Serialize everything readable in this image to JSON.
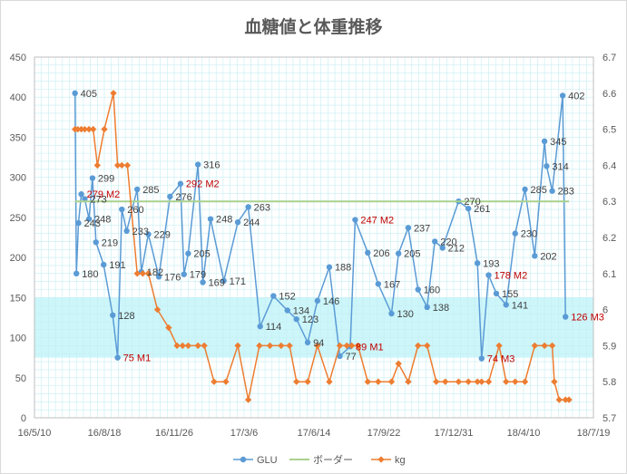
{
  "chart_data": {
    "type": "line",
    "title": "血糖値と体重推移",
    "x_axis": {
      "ticks": [
        "16/5/10",
        "16/8/18",
        "16/11/26",
        "17/3/6",
        "17/6/14",
        "17/9/22",
        "17/12/31",
        "18/4/10",
        "18/7/19"
      ],
      "range": [
        "2016-05-10",
        "2018-07-19"
      ]
    },
    "y_axis_left": {
      "min": 0,
      "max": 450,
      "step": 50,
      "ticks": [
        "0",
        "50",
        "100",
        "150",
        "200",
        "250",
        "300",
        "350",
        "400",
        "450"
      ]
    },
    "y_axis_right": {
      "min": 5.7,
      "max": 6.7,
      "step": 0.1,
      "ticks": [
        "5.7",
        "5.8",
        "5.9",
        "6",
        "6.1",
        "6.2",
        "6.3",
        "6.4",
        "6.5",
        "6.6",
        "6.7"
      ]
    },
    "target_band": {
      "from": 75,
      "to": 150,
      "color": "#ccf6fa"
    },
    "grid": true,
    "legend_position": "bottom",
    "series": [
      {
        "name": "GLU",
        "axis": "left",
        "color": "#5b9bd5",
        "points": [
          {
            "x": "2016-07-07",
            "y": 405,
            "label": "405"
          },
          {
            "x": "2016-07-09",
            "y": 180,
            "label": "180"
          },
          {
            "x": "2016-07-12",
            "y": 243,
            "label": "243"
          },
          {
            "x": "2016-07-16",
            "y": 279,
            "label": "279",
            "note": "M2"
          },
          {
            "x": "2016-07-21",
            "y": 273,
            "label": "273"
          },
          {
            "x": "2016-07-27",
            "y": 248,
            "label": "248"
          },
          {
            "x": "2016-08-01",
            "y": 299,
            "label": "299"
          },
          {
            "x": "2016-08-06",
            "y": 219,
            "label": "219"
          },
          {
            "x": "2016-08-17",
            "y": 191,
            "label": "191"
          },
          {
            "x": "2016-08-30",
            "y": 128,
            "label": "128"
          },
          {
            "x": "2016-09-06",
            "y": 75,
            "label": "75",
            "note": "M1"
          },
          {
            "x": "2016-09-12",
            "y": 260,
            "label": "260"
          },
          {
            "x": "2016-09-19",
            "y": 233,
            "label": "233"
          },
          {
            "x": "2016-10-04",
            "y": 285,
            "label": "285"
          },
          {
            "x": "2016-10-10",
            "y": 182,
            "label": "182"
          },
          {
            "x": "2016-10-20",
            "y": 229,
            "label": "229"
          },
          {
            "x": "2016-11-04",
            "y": 176,
            "label": "176"
          },
          {
            "x": "2016-11-20",
            "y": 276,
            "label": "276"
          },
          {
            "x": "2016-12-05",
            "y": 292,
            "label": "292",
            "note": "M2"
          },
          {
            "x": "2016-12-10",
            "y": 179,
            "label": "179"
          },
          {
            "x": "2016-12-16",
            "y": 205,
            "label": "205"
          },
          {
            "x": "2016-12-30",
            "y": 316,
            "label": "316"
          },
          {
            "x": "2017-01-06",
            "y": 169,
            "label": "169"
          },
          {
            "x": "2017-01-17",
            "y": 248,
            "label": "248"
          },
          {
            "x": "2017-02-05",
            "y": 171,
            "label": "171"
          },
          {
            "x": "2017-02-25",
            "y": 244,
            "label": "244"
          },
          {
            "x": "2017-03-12",
            "y": 263,
            "label": "263"
          },
          {
            "x": "2017-03-29",
            "y": 114,
            "label": "114"
          },
          {
            "x": "2017-04-17",
            "y": 152,
            "label": "152"
          },
          {
            "x": "2017-05-07",
            "y": 134,
            "label": "134"
          },
          {
            "x": "2017-05-20",
            "y": 123,
            "label": "123"
          },
          {
            "x": "2017-06-05",
            "y": 94,
            "label": "94"
          },
          {
            "x": "2017-06-19",
            "y": 146,
            "label": "146"
          },
          {
            "x": "2017-07-06",
            "y": 188,
            "label": "188"
          },
          {
            "x": "2017-07-21",
            "y": 77,
            "label": "77"
          },
          {
            "x": "2017-08-05",
            "y": 89,
            "label": "89",
            "note": "M1"
          },
          {
            "x": "2017-08-12",
            "y": 247,
            "label": "247",
            "note": "M2"
          },
          {
            "x": "2017-08-30",
            "y": 206,
            "label": "206"
          },
          {
            "x": "2017-09-14",
            "y": 167,
            "label": "167"
          },
          {
            "x": "2017-10-03",
            "y": 130,
            "label": "130"
          },
          {
            "x": "2017-10-13",
            "y": 205,
            "label": "205"
          },
          {
            "x": "2017-10-27",
            "y": 237,
            "label": "237"
          },
          {
            "x": "2017-11-10",
            "y": 160,
            "label": "160"
          },
          {
            "x": "2017-11-23",
            "y": 138,
            "label": "138"
          },
          {
            "x": "2017-12-04",
            "y": 220,
            "label": "220"
          },
          {
            "x": "2017-12-15",
            "y": 212,
            "label": "212"
          },
          {
            "x": "2018-01-07",
            "y": 270,
            "label": "270"
          },
          {
            "x": "2018-01-21",
            "y": 261,
            "label": "261"
          },
          {
            "x": "2018-02-03",
            "y": 193,
            "label": "193"
          },
          {
            "x": "2018-02-09",
            "y": 74,
            "label": "74",
            "note": "M3"
          },
          {
            "x": "2018-02-19",
            "y": 178,
            "label": "178",
            "note": "M2"
          },
          {
            "x": "2018-03-02",
            "y": 155,
            "label": "155"
          },
          {
            "x": "2018-03-16",
            "y": 141,
            "label": "141"
          },
          {
            "x": "2018-03-29",
            "y": 230,
            "label": "230"
          },
          {
            "x": "2018-04-12",
            "y": 285,
            "label": "285"
          },
          {
            "x": "2018-04-26",
            "y": 202,
            "label": "202"
          },
          {
            "x": "2018-05-10",
            "y": 345,
            "label": "345"
          },
          {
            "x": "2018-05-13",
            "y": 314,
            "label": "314"
          },
          {
            "x": "2018-05-21",
            "y": 283,
            "label": "283"
          },
          {
            "x": "2018-06-05",
            "y": 402,
            "label": "402"
          },
          {
            "x": "2018-06-09",
            "y": 126,
            "label": "126",
            "note": "M3"
          }
        ]
      },
      {
        "name": "ボーダー",
        "axis": "left",
        "color": "#a9d18e",
        "points": [
          {
            "x": "2016-07-07",
            "y": 270
          },
          {
            "x": "2018-06-14",
            "y": 270
          }
        ]
      },
      {
        "name": "kg",
        "axis": "right",
        "color": "#ed7d31",
        "points": [
          {
            "x": "2016-07-07",
            "y": 6.5
          },
          {
            "x": "2016-07-11",
            "y": 6.5
          },
          {
            "x": "2016-07-16",
            "y": 6.5
          },
          {
            "x": "2016-07-21",
            "y": 6.5
          },
          {
            "x": "2016-07-27",
            "y": 6.5
          },
          {
            "x": "2016-08-02",
            "y": 6.5
          },
          {
            "x": "2016-08-08",
            "y": 6.4
          },
          {
            "x": "2016-08-18",
            "y": 6.5
          },
          {
            "x": "2016-08-31",
            "y": 6.6
          },
          {
            "x": "2016-09-06",
            "y": 6.4
          },
          {
            "x": "2016-09-12",
            "y": 6.4
          },
          {
            "x": "2016-09-20",
            "y": 6.4
          },
          {
            "x": "2016-10-04",
            "y": 6.1
          },
          {
            "x": "2016-10-12",
            "y": 6.1
          },
          {
            "x": "2016-10-20",
            "y": 6.1
          },
          {
            "x": "2016-11-02",
            "y": 6.0
          },
          {
            "x": "2016-11-18",
            "y": 5.95
          },
          {
            "x": "2016-11-30",
            "y": 5.9
          },
          {
            "x": "2016-12-08",
            "y": 5.9
          },
          {
            "x": "2016-12-16",
            "y": 5.9
          },
          {
            "x": "2016-12-30",
            "y": 5.9
          },
          {
            "x": "2017-01-08",
            "y": 5.9
          },
          {
            "x": "2017-01-22",
            "y": 5.8
          },
          {
            "x": "2017-02-08",
            "y": 5.8
          },
          {
            "x": "2017-02-25",
            "y": 5.9
          },
          {
            "x": "2017-03-12",
            "y": 5.75
          },
          {
            "x": "2017-03-28",
            "y": 5.9
          },
          {
            "x": "2017-04-12",
            "y": 5.9
          },
          {
            "x": "2017-04-28",
            "y": 5.9
          },
          {
            "x": "2017-05-10",
            "y": 5.9
          },
          {
            "x": "2017-05-20",
            "y": 5.8
          },
          {
            "x": "2017-06-05",
            "y": 5.8
          },
          {
            "x": "2017-06-19",
            "y": 5.9
          },
          {
            "x": "2017-07-06",
            "y": 5.8
          },
          {
            "x": "2017-07-21",
            "y": 5.9
          },
          {
            "x": "2017-07-31",
            "y": 5.9
          },
          {
            "x": "2017-08-07",
            "y": 5.9
          },
          {
            "x": "2017-08-16",
            "y": 5.9
          },
          {
            "x": "2017-08-30",
            "y": 5.8
          },
          {
            "x": "2017-09-14",
            "y": 5.8
          },
          {
            "x": "2017-10-03",
            "y": 5.8
          },
          {
            "x": "2017-10-13",
            "y": 5.85
          },
          {
            "x": "2017-10-27",
            "y": 5.8
          },
          {
            "x": "2017-11-10",
            "y": 5.9
          },
          {
            "x": "2017-11-23",
            "y": 5.9
          },
          {
            "x": "2017-12-06",
            "y": 5.8
          },
          {
            "x": "2017-12-19",
            "y": 5.8
          },
          {
            "x": "2018-01-07",
            "y": 5.8
          },
          {
            "x": "2018-01-21",
            "y": 5.8
          },
          {
            "x": "2018-02-03",
            "y": 5.8
          },
          {
            "x": "2018-02-09",
            "y": 5.8
          },
          {
            "x": "2018-02-19",
            "y": 5.8
          },
          {
            "x": "2018-03-06",
            "y": 5.9
          },
          {
            "x": "2018-03-16",
            "y": 5.8
          },
          {
            "x": "2018-03-29",
            "y": 5.8
          },
          {
            "x": "2018-04-12",
            "y": 5.8
          },
          {
            "x": "2018-04-26",
            "y": 5.9
          },
          {
            "x": "2018-05-10",
            "y": 5.9
          },
          {
            "x": "2018-05-21",
            "y": 5.9
          },
          {
            "x": "2018-05-24",
            "y": 5.8
          },
          {
            "x": "2018-05-31",
            "y": 5.75
          },
          {
            "x": "2018-06-09",
            "y": 5.75
          },
          {
            "x": "2018-06-14",
            "y": 5.75
          }
        ]
      }
    ],
    "label_colors": {
      "normal": "#404040",
      "note": "#c00000"
    },
    "colors": {
      "axis_text": "#595959",
      "grid": "#c6eef2",
      "plot_border": "#bfbfbf",
      "plot_bg": "#ffffff"
    }
  }
}
